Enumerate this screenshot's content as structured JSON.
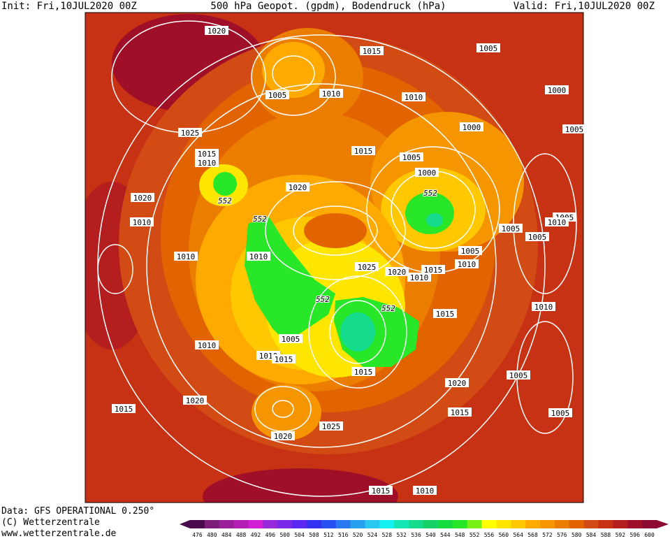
{
  "header": {
    "init": "Init: Fri,10JUL2020 00Z",
    "title": "500 hPa Geopot. (gpdm), Bodendruck (hPa)",
    "valid": "Valid: Fri,10JUL2020 00Z"
  },
  "footer": {
    "data": "Data: GFS OPERATIONAL 0.250°",
    "copyright": "(C) Wetterzentrale",
    "url": "www.wetterzentrale.de"
  },
  "colorbar": {
    "levels": [
      476,
      480,
      484,
      488,
      492,
      496,
      500,
      504,
      508,
      512,
      516,
      520,
      524,
      528,
      532,
      536,
      540,
      544,
      548,
      552,
      556,
      560,
      564,
      568,
      572,
      576,
      580,
      584,
      588,
      592,
      596,
      600
    ],
    "colors": [
      "#4b0a4b",
      "#7a1e7a",
      "#9b1f9b",
      "#b41eb4",
      "#d21ed2",
      "#9628dc",
      "#7828e6",
      "#5a28f0",
      "#3232f0",
      "#2850f0",
      "#2878f0",
      "#28a0f0",
      "#28c8f0",
      "#14f0f0",
      "#14e6b4",
      "#14dc8c",
      "#14d264",
      "#14dc3c",
      "#28e628",
      "#78f014",
      "#ffff00",
      "#ffe600",
      "#ffc800",
      "#ffaa00",
      "#f59600",
      "#eb7d00",
      "#e16400",
      "#d24b14",
      "#c83214",
      "#b41e1e",
      "#a00f28",
      "#8c0a32"
    ]
  },
  "isobar_labels": [
    1020,
    1015,
    1005,
    1005,
    1010,
    1010,
    1000,
    1000,
    1025,
    1005,
    1015,
    1010,
    1015,
    1005,
    1000,
    1020,
    1020,
    1010,
    1005,
    1010,
    1005,
    1005,
    1005,
    1010,
    1010,
    1010,
    1025,
    1020,
    1015,
    1010,
    1010,
    1015,
    1005,
    1010,
    1010,
    1015,
    1015,
    1005,
    1020,
    1020,
    1015,
    1015,
    1005,
    1025,
    1020,
    1015,
    1010
  ],
  "geopot_labels": [
    552,
    552,
    552,
    552,
    552
  ]
}
